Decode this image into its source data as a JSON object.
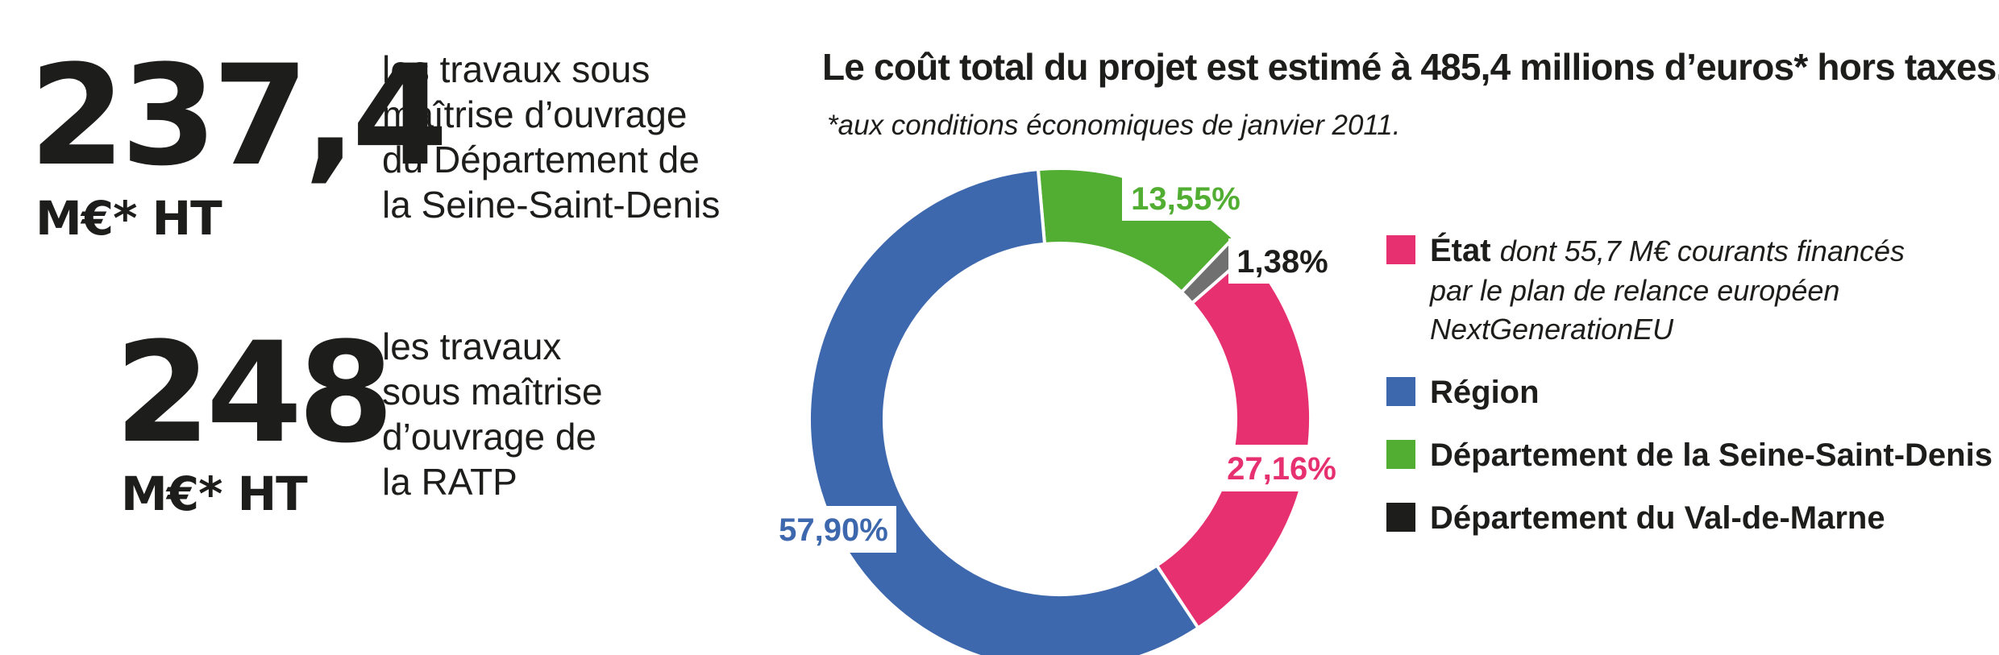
{
  "stats": [
    {
      "value": "237,4",
      "unit": "M€* HT",
      "lines": [
        "les travaux sous",
        "maîtrise d’ouvrage",
        "du Département de",
        "la Seine-Saint-Denis"
      ]
    },
    {
      "value": "248",
      "unit": "M€* HT",
      "lines": [
        "les travaux",
        "sous maîtrise",
        "d’ouvrage de",
        "la RATP"
      ]
    }
  ],
  "chart_data": {
    "type": "pie",
    "variant": "donut",
    "title": "Le coût total du projet est estimé à 485,4 millions d’euros* hors taxes.",
    "subtitle": "*aux conditions économiques de janvier 2011.",
    "slices": [
      {
        "name": "Département de la Seine-Saint-Denis",
        "value": 13.55,
        "label": "13,55%",
        "color": "#52ae32"
      },
      {
        "name": "Département du Val-de-Marne",
        "value": 1.38,
        "label": "1,38%",
        "color": "#1d1d1b"
      },
      {
        "name": "État",
        "value": 27.16,
        "label": "27,16%",
        "color": "#e6306f"
      },
      {
        "name": "Région",
        "value": 57.9,
        "label": "57,90%",
        "color": "#3d68ad"
      }
    ],
    "legend": [
      {
        "name": "État",
        "note_lines": [
          "dont 55,7 M€ courants financés",
          "par le plan de relance européen",
          "NextGenerationEU"
        ],
        "color": "#e6306f"
      },
      {
        "name": "Région",
        "color": "#3d68ad"
      },
      {
        "name": "Département de la Seine-Saint-Denis",
        "color": "#52ae32"
      },
      {
        "name": "Département du Val-de-Marne",
        "color": "#1d1d1b"
      }
    ],
    "legend_position": "right"
  }
}
